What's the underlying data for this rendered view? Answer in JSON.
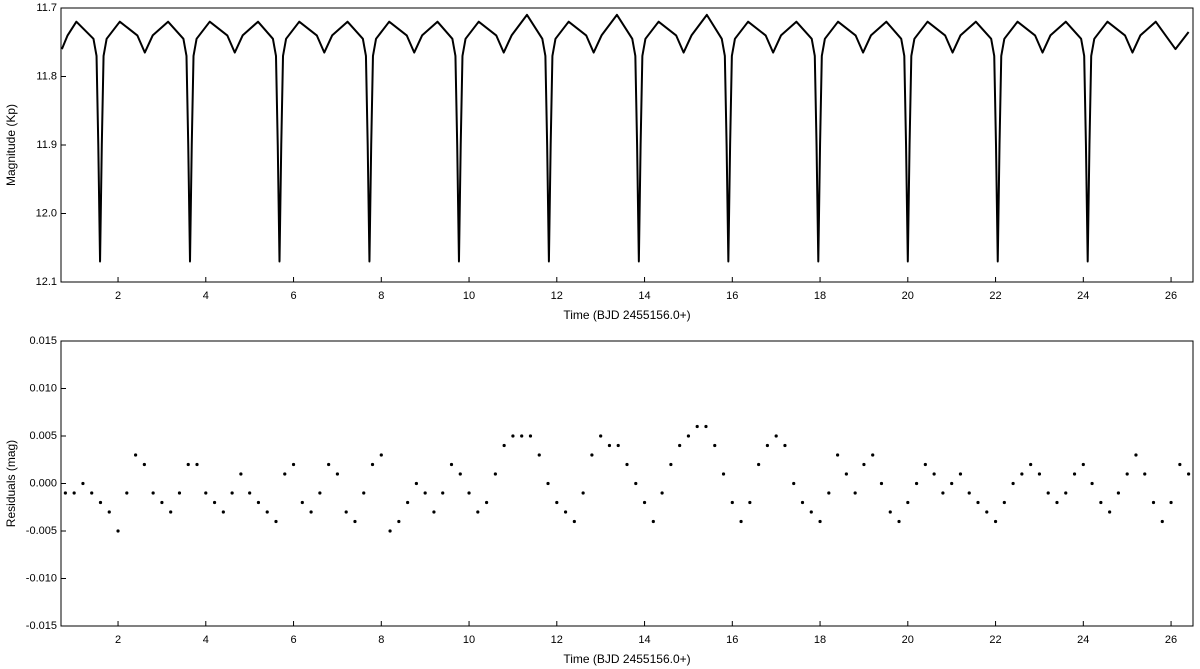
{
  "chart_data": [
    {
      "type": "line",
      "color": "#000000",
      "xlabel": "Time (BJD 2455156.0+)",
      "ylabel": "Magnitude (Kp)",
      "xlim": [
        0.7,
        26.5
      ],
      "xticks": [
        2,
        4,
        6,
        8,
        10,
        12,
        14,
        16,
        18,
        20,
        22,
        24,
        26
      ],
      "ylim": [
        12.1,
        11.7
      ],
      "yticks": [
        11.7,
        11.8,
        11.9,
        {
          "value": 12,
          "label": "12.0"
        },
        12.1
      ],
      "x": [
        0.72,
        0.85,
        1.05,
        1.44,
        1.51,
        1.55,
        1.59,
        1.63,
        1.67,
        1.74,
        2.04,
        2.44,
        2.61,
        2.79,
        3.14,
        3.49,
        3.56,
        3.6,
        3.64,
        3.68,
        3.72,
        3.79,
        4.09,
        4.49,
        4.66,
        4.84,
        5.19,
        5.53,
        5.6,
        5.64,
        5.68,
        5.72,
        5.76,
        5.83,
        6.13,
        6.53,
        6.7,
        6.88,
        7.23,
        7.58,
        7.65,
        7.69,
        7.73,
        7.77,
        7.81,
        7.88,
        8.18,
        8.58,
        8.75,
        8.93,
        9.28,
        9.62,
        9.69,
        9.73,
        9.77,
        9.81,
        9.85,
        9.92,
        10.22,
        10.62,
        10.79,
        10.97,
        11.32,
        11.67,
        11.74,
        11.78,
        11.82,
        11.86,
        11.9,
        11.97,
        12.27,
        12.67,
        12.84,
        13.02,
        13.37,
        13.72,
        13.79,
        13.83,
        13.87,
        13.91,
        13.95,
        14.02,
        14.32,
        14.72,
        14.89,
        15.07,
        15.42,
        15.76,
        15.83,
        15.87,
        15.91,
        15.95,
        15.99,
        16.06,
        16.36,
        16.76,
        16.93,
        17.11,
        17.46,
        17.81,
        17.88,
        17.92,
        17.96,
        18.0,
        18.04,
        18.11,
        18.41,
        18.81,
        18.98,
        19.16,
        19.51,
        19.85,
        19.92,
        19.96,
        20.0,
        20.04,
        20.08,
        20.15,
        20.45,
        20.85,
        21.02,
        21.2,
        21.55,
        21.9,
        21.97,
        22.01,
        22.05,
        22.09,
        22.13,
        22.2,
        22.5,
        22.9,
        23.07,
        23.25,
        23.6,
        23.95,
        24.02,
        24.06,
        24.1,
        24.14,
        24.18,
        24.25,
        24.55,
        24.95,
        25.12,
        25.3,
        25.65,
        26.1,
        26.4
      ],
      "values": [
        11.76,
        11.74,
        11.72,
        11.745,
        11.77,
        11.9,
        12.07,
        11.9,
        11.77,
        11.745,
        11.72,
        11.74,
        11.765,
        11.74,
        11.72,
        11.745,
        11.77,
        11.9,
        12.07,
        11.9,
        11.77,
        11.745,
        11.72,
        11.74,
        11.765,
        11.74,
        11.72,
        11.745,
        11.77,
        11.9,
        12.07,
        11.9,
        11.77,
        11.745,
        11.72,
        11.74,
        11.765,
        11.74,
        11.72,
        11.745,
        11.77,
        11.9,
        12.07,
        11.9,
        11.77,
        11.745,
        11.72,
        11.74,
        11.765,
        11.74,
        11.72,
        11.745,
        11.77,
        11.9,
        12.07,
        11.9,
        11.77,
        11.745,
        11.72,
        11.74,
        11.765,
        11.74,
        11.71,
        11.745,
        11.77,
        11.9,
        12.07,
        11.9,
        11.77,
        11.745,
        11.72,
        11.74,
        11.765,
        11.74,
        11.71,
        11.745,
        11.77,
        11.9,
        12.07,
        11.9,
        11.77,
        11.745,
        11.72,
        11.74,
        11.765,
        11.74,
        11.71,
        11.745,
        11.77,
        11.9,
        12.07,
        11.9,
        11.77,
        11.745,
        11.72,
        11.74,
        11.765,
        11.74,
        11.72,
        11.745,
        11.77,
        11.9,
        12.07,
        11.9,
        11.77,
        11.745,
        11.72,
        11.74,
        11.765,
        11.74,
        11.72,
        11.745,
        11.77,
        11.9,
        12.07,
        11.9,
        11.77,
        11.745,
        11.72,
        11.74,
        11.765,
        11.74,
        11.72,
        11.745,
        11.77,
        11.9,
        12.07,
        11.9,
        11.77,
        11.745,
        11.72,
        11.74,
        11.765,
        11.74,
        11.72,
        11.745,
        11.77,
        11.9,
        12.07,
        11.9,
        11.77,
        11.745,
        11.72,
        11.74,
        11.765,
        11.74,
        11.72,
        11.76,
        11.735
      ]
    },
    {
      "type": "scatter",
      "color": "#000000",
      "xlabel": "Time (BJD 2455156.0+)",
      "ylabel": "Residuals (mag)",
      "xlim": [
        0.7,
        26.5
      ],
      "xticks": [
        2,
        4,
        6,
        8,
        10,
        12,
        14,
        16,
        18,
        20,
        22,
        24,
        26
      ],
      "ylim": [
        -0.015,
        0.015
      ],
      "yticks": [
        -0.015,
        {
          "value": -0.01,
          "label": "-0.010"
        },
        -0.005,
        {
          "value": 0,
          "label": "0.000"
        },
        0.005,
        {
          "value": 0.01,
          "label": "0.010"
        },
        0.015
      ],
      "x": [
        0.8,
        1.0,
        1.2,
        1.4,
        1.6,
        1.8,
        2.0,
        2.2,
        2.4,
        2.6,
        2.8,
        3.0,
        3.2,
        3.4,
        3.6,
        3.8,
        4.0,
        4.2,
        4.4,
        4.6,
        4.8,
        5.0,
        5.2,
        5.4,
        5.6,
        5.8,
        6.0,
        6.2,
        6.4,
        6.6,
        6.8,
        7.0,
        7.2,
        7.4,
        7.6,
        7.8,
        8.0,
        8.2,
        8.4,
        8.6,
        8.8,
        9.0,
        9.2,
        9.4,
        9.6,
        9.8,
        10.0,
        10.2,
        10.4,
        10.6,
        10.8,
        11.0,
        11.2,
        11.4,
        11.6,
        11.8,
        12.0,
        12.2,
        12.4,
        12.6,
        12.8,
        13.0,
        13.2,
        13.4,
        13.6,
        13.8,
        14.0,
        14.2,
        14.4,
        14.6,
        14.8,
        15.0,
        15.2,
        15.4,
        15.6,
        15.8,
        16.0,
        16.2,
        16.4,
        16.6,
        16.8,
        17.0,
        17.2,
        17.4,
        17.6,
        17.8,
        18.0,
        18.2,
        18.4,
        18.6,
        18.8,
        19.0,
        19.2,
        19.4,
        19.6,
        19.8,
        20.0,
        20.2,
        20.4,
        20.6,
        20.8,
        21.0,
        21.2,
        21.4,
        21.6,
        21.8,
        22.0,
        22.2,
        22.4,
        22.6,
        22.8,
        23.0,
        23.2,
        23.4,
        23.6,
        23.8,
        24.0,
        24.2,
        24.4,
        24.6,
        24.8,
        25.0,
        25.2,
        25.4,
        25.6,
        25.8,
        26.0,
        26.2,
        26.4
      ],
      "values": [
        -0.001,
        -0.001,
        0.0,
        -0.001,
        -0.002,
        -0.003,
        -0.005,
        -0.001,
        0.003,
        0.002,
        -0.001,
        -0.002,
        -0.003,
        -0.001,
        0.002,
        0.002,
        -0.001,
        -0.002,
        -0.003,
        -0.001,
        0.001,
        -0.001,
        -0.002,
        -0.003,
        -0.004,
        0.001,
        0.002,
        -0.002,
        -0.003,
        -0.001,
        0.002,
        0.001,
        -0.003,
        -0.004,
        -0.001,
        0.002,
        0.003,
        -0.005,
        -0.004,
        -0.002,
        0.0,
        -0.001,
        -0.003,
        -0.001,
        0.002,
        0.001,
        -0.001,
        -0.003,
        -0.002,
        0.001,
        0.004,
        0.005,
        0.005,
        0.005,
        0.003,
        0.0,
        -0.002,
        -0.003,
        -0.004,
        -0.001,
        0.003,
        0.005,
        0.004,
        0.004,
        0.002,
        0.0,
        -0.002,
        -0.004,
        -0.001,
        0.002,
        0.004,
        0.005,
        0.006,
        0.006,
        0.004,
        0.001,
        -0.002,
        -0.004,
        -0.002,
        0.002,
        0.004,
        0.005,
        0.004,
        0.0,
        -0.002,
        -0.003,
        -0.004,
        -0.001,
        0.003,
        0.001,
        -0.001,
        0.002,
        0.003,
        0.0,
        -0.003,
        -0.004,
        -0.002,
        0.0,
        0.002,
        0.001,
        -0.001,
        0.0,
        0.001,
        -0.001,
        -0.002,
        -0.003,
        -0.004,
        -0.002,
        0.0,
        0.001,
        0.002,
        0.001,
        -0.001,
        -0.002,
        -0.001,
        0.001,
        0.002,
        0.0,
        -0.002,
        -0.003,
        -0.001,
        0.001,
        0.003,
        0.001,
        -0.002,
        -0.004,
        -0.002,
        0.002,
        0.001
      ]
    }
  ]
}
